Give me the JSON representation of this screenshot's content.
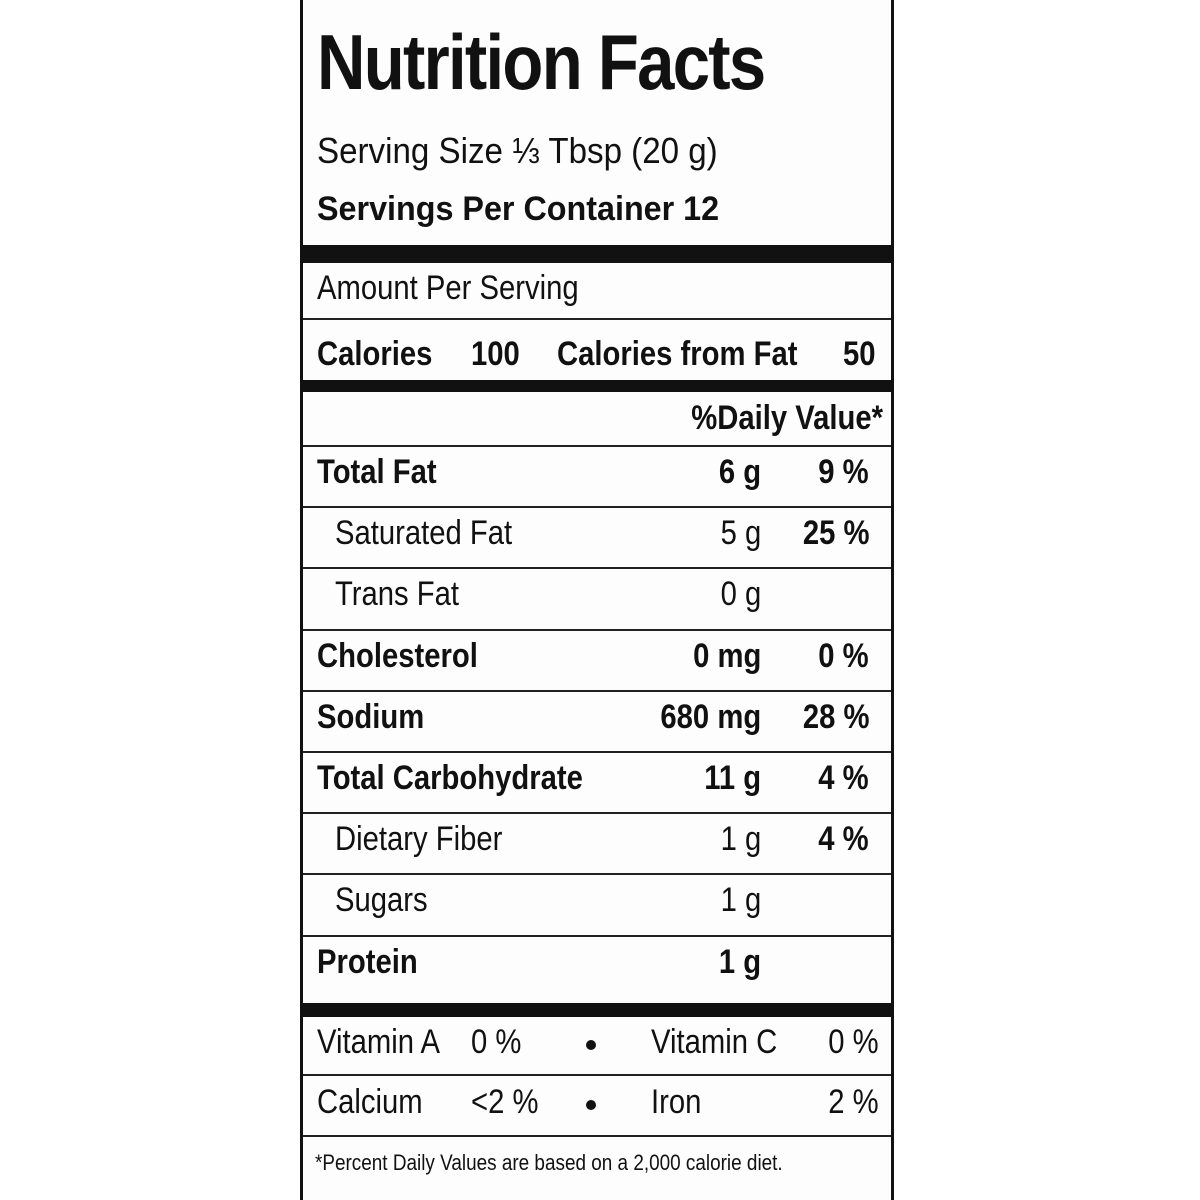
{
  "title": "Nutrition Facts",
  "serving_size": "Serving Size ⅓ Tbsp (20 g)",
  "servings_per_container": "Servings Per Container 12",
  "amount_per_serving": "Amount Per Serving",
  "calories": {
    "label": "Calories",
    "value": "100",
    "from_fat_label": "Calories from Fat",
    "from_fat_value": "50"
  },
  "daily_value_header": "%Daily Value*",
  "nutrients": [
    {
      "name": "Total Fat",
      "amount": "6 g",
      "dv": "9 %",
      "bold": true,
      "indent": false
    },
    {
      "name": "Saturated Fat",
      "amount": "5 g",
      "dv": "25 %",
      "bold": false,
      "indent": true
    },
    {
      "name": "Trans Fat",
      "amount": "0 g",
      "dv": "",
      "bold": false,
      "indent": true
    },
    {
      "name": "Cholesterol",
      "amount": "0 mg",
      "dv": "0 %",
      "bold": true,
      "indent": false
    },
    {
      "name": "Sodium",
      "amount": "680 mg",
      "dv": "28 %",
      "bold": true,
      "indent": false
    },
    {
      "name": "Total Carbohydrate",
      "amount": "11 g",
      "dv": "4 %",
      "bold": true,
      "indent": false
    },
    {
      "name": "Dietary Fiber",
      "amount": "1 g",
      "dv": "4 %",
      "bold": false,
      "indent": true
    },
    {
      "name": "Sugars",
      "amount": "1 g",
      "dv": "",
      "bold": false,
      "indent": true
    },
    {
      "name": "Protein",
      "amount": "1 g",
      "dv": "",
      "bold": true,
      "indent": false
    }
  ],
  "vitamins": [
    {
      "left_name": "Vitamin A",
      "left_value": "0 %",
      "right_name": "Vitamin C",
      "right_value": "0 %"
    },
    {
      "left_name": "Calcium",
      "left_value": "<2 %",
      "right_name": "Iron",
      "right_value": "2 %"
    }
  ],
  "footnote": "*Percent Daily Values are based on a 2,000 calorie diet."
}
